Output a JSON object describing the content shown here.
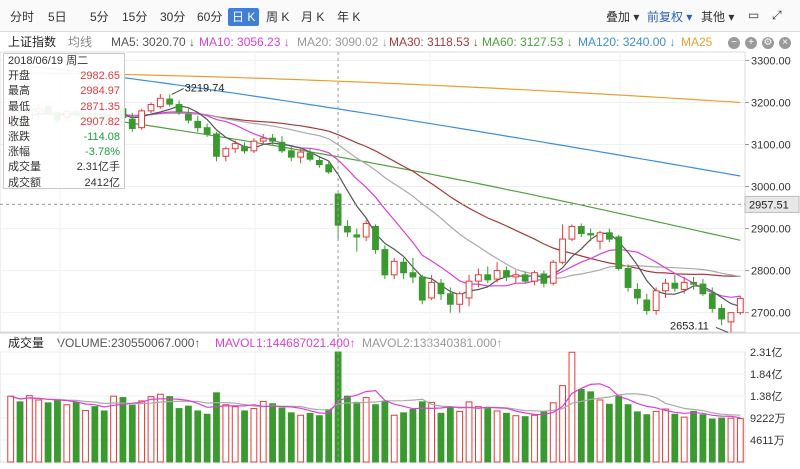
{
  "toolbar": {
    "tabs": [
      "分时",
      "5日",
      "5分",
      "15分",
      "30分",
      "60分",
      "日 K",
      "周 K",
      "月 K",
      "年 K"
    ],
    "active_tab": "日 K",
    "right": {
      "overlay": "叠加",
      "adjust": "前复权",
      "more": "其他"
    }
  },
  "legend": {
    "name": "上证指数",
    "type": "均线",
    "ma5": "MA5: 3020.70 ↓",
    "ma10": "MA10: 3056.23 ↓",
    "ma20": "MA20: 3090.02 ↓",
    "ma30": "MA30: 3118.53 ↓",
    "ma60": "MA60: 3127.53 ↓",
    "ma120": "MA120: 3240.00 ↓",
    "ma250": "MA25"
  },
  "volume_legend": {
    "title": "成交量",
    "volume": "VOLUME:230550067.000↑",
    "mavol1": "MAVOL1:144687021.400↑",
    "mavol2": "MAVOL2:133340381.000↑"
  },
  "info_box": {
    "date": "2018/06/19 周二",
    "rows": [
      {
        "label": "开盘",
        "value": "2982.65",
        "color": "red"
      },
      {
        "label": "最高",
        "value": "2984.97",
        "color": "red"
      },
      {
        "label": "最低",
        "value": "2871.35",
        "color": "red"
      },
      {
        "label": "收盘",
        "value": "2907.82",
        "color": "red"
      },
      {
        "label": "涨跌",
        "value": "-114.08",
        "color": "green"
      },
      {
        "label": "涨幅",
        "value": "-3.78%",
        "color": "green"
      },
      {
        "label": "成交量",
        "value": "2.31亿手",
        "color": "dark"
      },
      {
        "label": "成交额",
        "value": "2412亿",
        "color": "dark"
      }
    ]
  },
  "annotations": {
    "high": "3219.74",
    "low": "2653.11"
  },
  "crosshair_label": "2957.51",
  "colors": {
    "up": "#e23b3b",
    "down": "#3a9a2f",
    "ma5": "#555555",
    "ma10": "#d93fd9",
    "ma20": "#aaaaaa",
    "ma30": "#a33b3b",
    "ma60": "#52a040",
    "ma120": "#3d8fd8",
    "ma250": "#e8a030"
  },
  "chart_data": {
    "type": "candlestick",
    "price_axis": {
      "ticks": [
        3300,
        3200,
        3100,
        3000,
        2900,
        2800,
        2700
      ],
      "tick_labels": [
        "3300.00",
        "3200.00",
        "3100.00",
        "3000.00",
        "2900.00",
        "2800.00",
        "2700.00"
      ],
      "range": [
        2654,
        3320
      ]
    },
    "volume_axis": {
      "tick_labels": [
        "2.31亿",
        "1.84亿",
        "1.38亿",
        "9222万",
        "4611万"
      ],
      "range": [
        0,
        23055
      ]
    },
    "ma_last": {
      "MA5": 3020.7,
      "MA10": 3056.23,
      "MA20": 3090.02,
      "MA30": 3118.53,
      "MA60": 3127.53,
      "MA120": 3240.0
    },
    "candles": [
      {
        "o": 3162,
        "h": 3180,
        "l": 3150,
        "c": 3168,
        "v": 13800
      },
      {
        "o": 3168,
        "h": 3185,
        "l": 3155,
        "c": 3160,
        "v": 12600
      },
      {
        "o": 3162,
        "h": 3190,
        "l": 3150,
        "c": 3178,
        "v": 13900
      },
      {
        "o": 3178,
        "h": 3195,
        "l": 3165,
        "c": 3185,
        "v": 13000
      },
      {
        "o": 3190,
        "h": 3200,
        "l": 3172,
        "c": 3175,
        "v": 12400
      },
      {
        "o": 3172,
        "h": 3180,
        "l": 3150,
        "c": 3158,
        "v": 13100
      },
      {
        "o": 3165,
        "h": 3185,
        "l": 3155,
        "c": 3178,
        "v": 12000
      },
      {
        "o": 3178,
        "h": 3190,
        "l": 3160,
        "c": 3170,
        "v": 12500
      },
      {
        "o": 3168,
        "h": 3182,
        "l": 3155,
        "c": 3175,
        "v": 10800
      },
      {
        "o": 3172,
        "h": 3185,
        "l": 3160,
        "c": 3168,
        "v": 11600
      },
      {
        "o": 3168,
        "h": 3176,
        "l": 3155,
        "c": 3162,
        "v": 10700
      },
      {
        "o": 3160,
        "h": 3190,
        "l": 3150,
        "c": 3185,
        "v": 13800
      },
      {
        "o": 3185,
        "h": 3190,
        "l": 3160,
        "c": 3164,
        "v": 13500
      },
      {
        "o": 3160,
        "h": 3175,
        "l": 3130,
        "c": 3138,
        "v": 11900
      },
      {
        "o": 3140,
        "h": 3185,
        "l": 3135,
        "c": 3180,
        "v": 12800
      },
      {
        "o": 3180,
        "h": 3200,
        "l": 3175,
        "c": 3195,
        "v": 13700
      },
      {
        "o": 3190,
        "h": 3220,
        "l": 3185,
        "c": 3210,
        "v": 14200
      },
      {
        "o": 3208,
        "h": 3219,
        "l": 3190,
        "c": 3196,
        "v": 13700
      },
      {
        "o": 3195,
        "h": 3205,
        "l": 3170,
        "c": 3178,
        "v": 11200
      },
      {
        "o": 3172,
        "h": 3185,
        "l": 3150,
        "c": 3158,
        "v": 11700
      },
      {
        "o": 3155,
        "h": 3168,
        "l": 3130,
        "c": 3140,
        "v": 10700
      },
      {
        "o": 3140,
        "h": 3150,
        "l": 3118,
        "c": 3125,
        "v": 10000
      },
      {
        "o": 3125,
        "h": 3130,
        "l": 3060,
        "c": 3072,
        "v": 14500
      },
      {
        "o": 3072,
        "h": 3095,
        "l": 3060,
        "c": 3090,
        "v": 12000
      },
      {
        "o": 3090,
        "h": 3110,
        "l": 3080,
        "c": 3102,
        "v": 11600
      },
      {
        "o": 3095,
        "h": 3105,
        "l": 3078,
        "c": 3085,
        "v": 10700
      },
      {
        "o": 3085,
        "h": 3115,
        "l": 3080,
        "c": 3108,
        "v": 11200
      },
      {
        "o": 3108,
        "h": 3125,
        "l": 3100,
        "c": 3115,
        "v": 12700
      },
      {
        "o": 3115,
        "h": 3125,
        "l": 3100,
        "c": 3108,
        "v": 12200
      },
      {
        "o": 3105,
        "h": 3120,
        "l": 3080,
        "c": 3085,
        "v": 11300
      },
      {
        "o": 3085,
        "h": 3095,
        "l": 3060,
        "c": 3070,
        "v": 10300
      },
      {
        "o": 3070,
        "h": 3090,
        "l": 3055,
        "c": 3082,
        "v": 9800
      },
      {
        "o": 3080,
        "h": 3090,
        "l": 3060,
        "c": 3065,
        "v": 10200
      },
      {
        "o": 3062,
        "h": 3070,
        "l": 3045,
        "c": 3052,
        "v": 9700
      },
      {
        "o": 3052,
        "h": 3060,
        "l": 3030,
        "c": 3035,
        "v": 11000
      },
      {
        "o": 2982,
        "h": 2985,
        "l": 2871,
        "c": 2908,
        "v": 23055
      },
      {
        "o": 2905,
        "h": 2920,
        "l": 2880,
        "c": 2892,
        "v": 13800
      },
      {
        "o": 2885,
        "h": 2900,
        "l": 2845,
        "c": 2880,
        "v": 12500
      },
      {
        "o": 2880,
        "h": 2920,
        "l": 2870,
        "c": 2912,
        "v": 13500
      },
      {
        "o": 2905,
        "h": 2910,
        "l": 2840,
        "c": 2850,
        "v": 12000
      },
      {
        "o": 2850,
        "h": 2860,
        "l": 2780,
        "c": 2790,
        "v": 12800
      },
      {
        "o": 2790,
        "h": 2830,
        "l": 2780,
        "c": 2822,
        "v": 9800
      },
      {
        "o": 2820,
        "h": 2830,
        "l": 2780,
        "c": 2795,
        "v": 10300
      },
      {
        "o": 2795,
        "h": 2830,
        "l": 2770,
        "c": 2785,
        "v": 11000
      },
      {
        "o": 2785,
        "h": 2790,
        "l": 2720,
        "c": 2730,
        "v": 12600
      },
      {
        "o": 2735,
        "h": 2790,
        "l": 2730,
        "c": 2772,
        "v": 12500
      },
      {
        "o": 2770,
        "h": 2780,
        "l": 2730,
        "c": 2745,
        "v": 10200
      },
      {
        "o": 2745,
        "h": 2760,
        "l": 2700,
        "c": 2720,
        "v": 11400
      },
      {
        "o": 2720,
        "h": 2750,
        "l": 2700,
        "c": 2745,
        "v": 10600
      },
      {
        "o": 2735,
        "h": 2790,
        "l": 2715,
        "c": 2775,
        "v": 12600
      },
      {
        "o": 2775,
        "h": 2805,
        "l": 2760,
        "c": 2790,
        "v": 11600
      },
      {
        "o": 2790,
        "h": 2810,
        "l": 2770,
        "c": 2778,
        "v": 11200
      },
      {
        "o": 2780,
        "h": 2820,
        "l": 2772,
        "c": 2800,
        "v": 10700
      },
      {
        "o": 2800,
        "h": 2810,
        "l": 2775,
        "c": 2785,
        "v": 10200
      },
      {
        "o": 2785,
        "h": 2800,
        "l": 2770,
        "c": 2790,
        "v": 9700
      },
      {
        "o": 2790,
        "h": 2798,
        "l": 2770,
        "c": 2775,
        "v": 9500
      },
      {
        "o": 2775,
        "h": 2800,
        "l": 2765,
        "c": 2795,
        "v": 9800
      },
      {
        "o": 2792,
        "h": 2800,
        "l": 2760,
        "c": 2770,
        "v": 10600
      },
      {
        "o": 2770,
        "h": 2825,
        "l": 2765,
        "c": 2820,
        "v": 12400
      },
      {
        "o": 2820,
        "h": 2910,
        "l": 2815,
        "c": 2875,
        "v": 16000
      },
      {
        "o": 2875,
        "h": 2910,
        "l": 2870,
        "c": 2905,
        "v": 23000
      },
      {
        "o": 2905,
        "h": 2912,
        "l": 2880,
        "c": 2888,
        "v": 15200
      },
      {
        "o": 2888,
        "h": 2900,
        "l": 2870,
        "c": 2885,
        "v": 14700
      },
      {
        "o": 2870,
        "h": 2895,
        "l": 2850,
        "c": 2890,
        "v": 13000
      },
      {
        "o": 2890,
        "h": 2900,
        "l": 2868,
        "c": 2875,
        "v": 12100
      },
      {
        "o": 2880,
        "h": 2885,
        "l": 2800,
        "c": 2805,
        "v": 13800
      },
      {
        "o": 2805,
        "h": 2815,
        "l": 2750,
        "c": 2760,
        "v": 12000
      },
      {
        "o": 2755,
        "h": 2770,
        "l": 2720,
        "c": 2735,
        "v": 10500
      },
      {
        "o": 2730,
        "h": 2745,
        "l": 2695,
        "c": 2705,
        "v": 9900
      },
      {
        "o": 2705,
        "h": 2760,
        "l": 2695,
        "c": 2752,
        "v": 10600
      },
      {
        "o": 2752,
        "h": 2780,
        "l": 2735,
        "c": 2770,
        "v": 11100
      },
      {
        "o": 2770,
        "h": 2790,
        "l": 2750,
        "c": 2758,
        "v": 10000
      },
      {
        "o": 2755,
        "h": 2785,
        "l": 2745,
        "c": 2772,
        "v": 9400
      },
      {
        "o": 2772,
        "h": 2785,
        "l": 2755,
        "c": 2768,
        "v": 10600
      },
      {
        "o": 2768,
        "h": 2780,
        "l": 2740,
        "c": 2745,
        "v": 9900
      },
      {
        "o": 2745,
        "h": 2760,
        "l": 2700,
        "c": 2710,
        "v": 9000
      },
      {
        "o": 2710,
        "h": 2720,
        "l": 2670,
        "c": 2685,
        "v": 9200
      },
      {
        "o": 2678,
        "h": 2700,
        "l": 2653,
        "c": 2700,
        "v": 9200
      },
      {
        "o": 2700,
        "h": 2740,
        "l": 2695,
        "c": 2734,
        "v": 9100
      }
    ]
  }
}
